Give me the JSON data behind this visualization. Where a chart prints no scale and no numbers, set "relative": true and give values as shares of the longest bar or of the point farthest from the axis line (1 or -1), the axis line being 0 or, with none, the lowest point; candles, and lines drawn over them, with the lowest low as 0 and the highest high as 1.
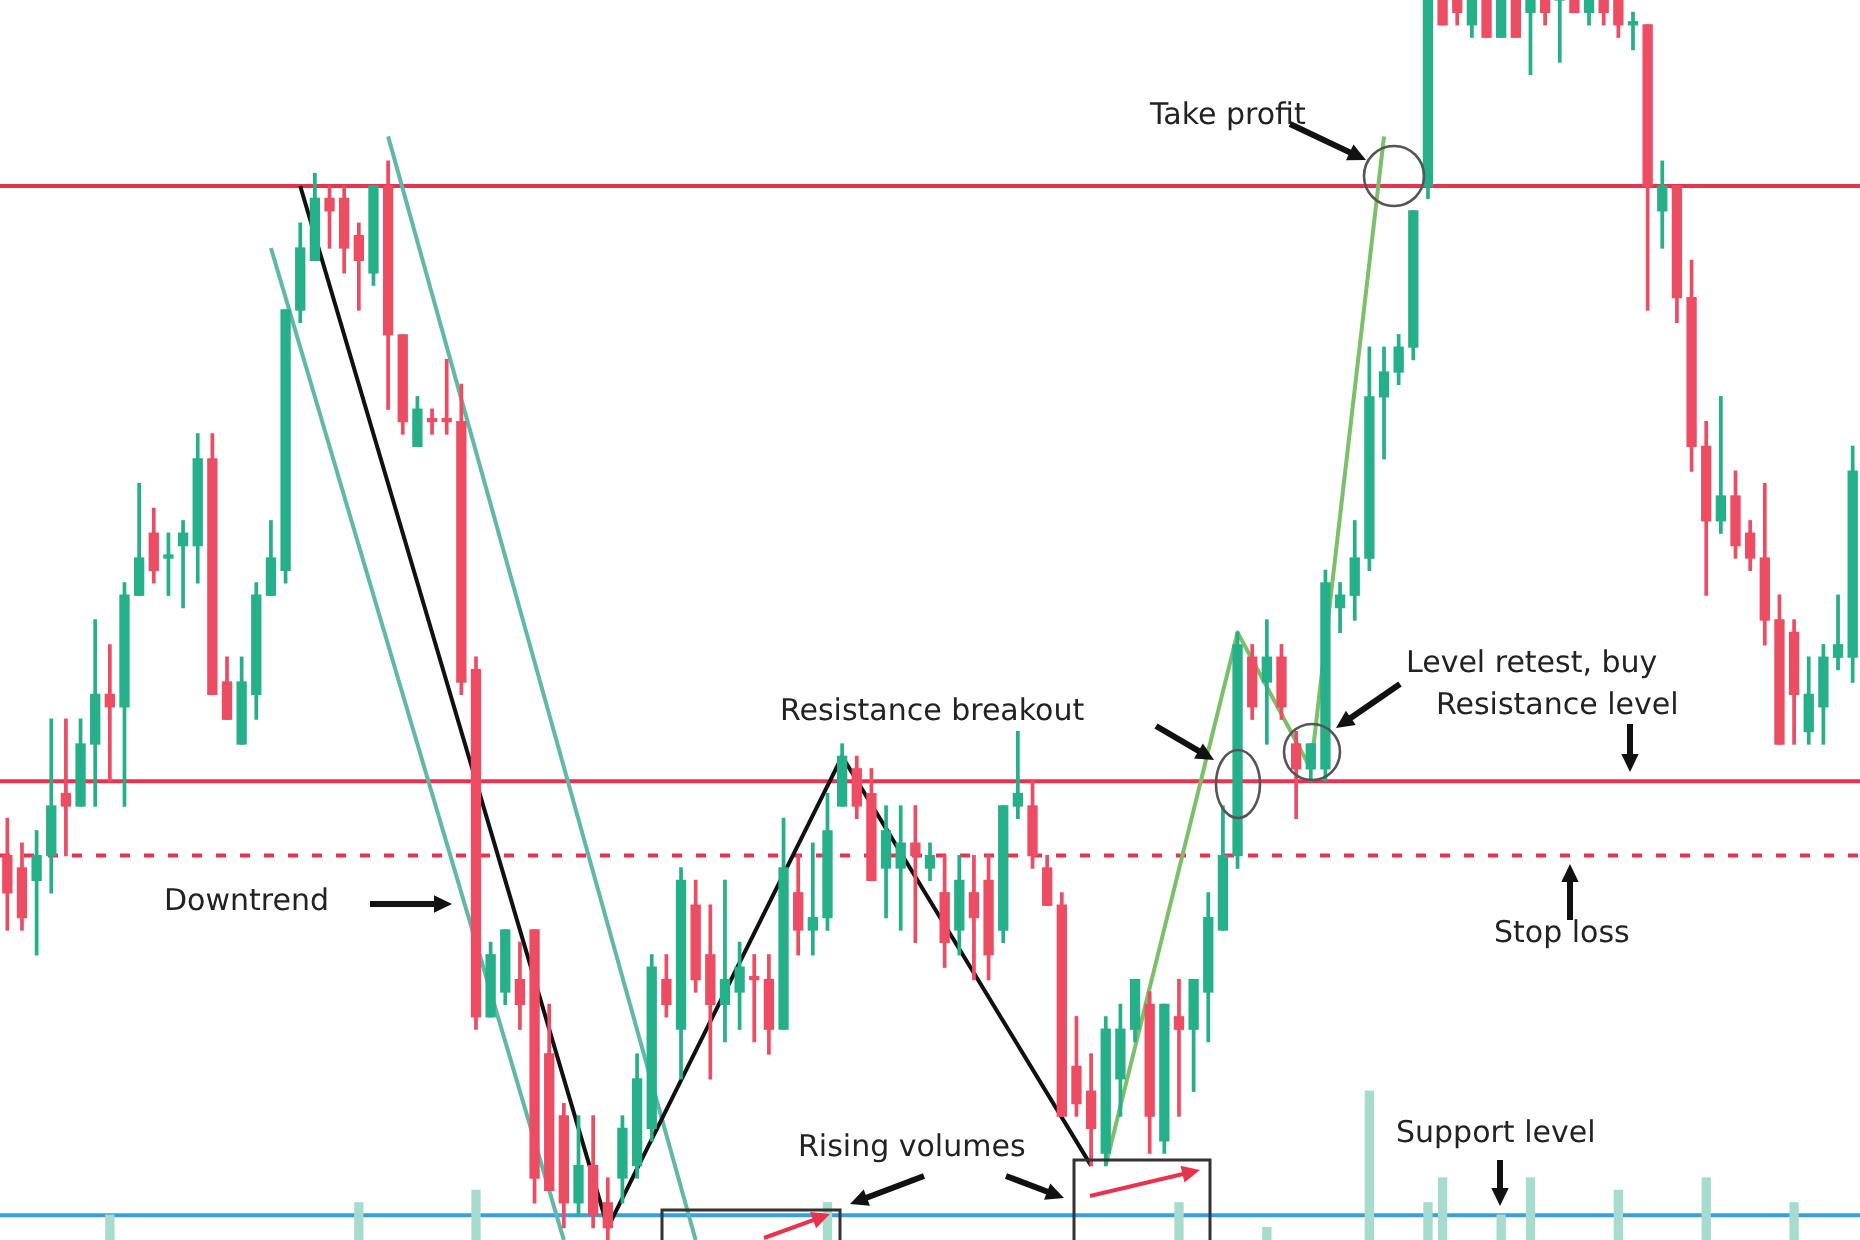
{
  "chart_data": {
    "type": "candlestick",
    "relative": true,
    "categories": [
      null,
      null,
      null,
      null,
      null,
      null,
      null,
      null,
      null,
      null,
      null,
      null,
      null,
      null,
      null,
      null,
      null,
      null,
      null,
      null,
      null,
      null,
      null,
      null,
      null,
      null,
      null,
      null,
      null,
      null,
      null,
      null,
      null,
      null,
      null,
      null,
      null,
      null,
      null,
      null,
      null,
      null,
      null,
      null,
      null,
      null,
      null,
      null,
      null,
      null,
      null,
      null,
      null,
      null,
      null,
      null,
      null,
      null,
      null,
      null,
      null,
      null,
      null,
      null,
      null,
      null,
      null,
      null,
      null,
      null,
      null,
      null,
      null,
      null,
      null,
      null,
      null,
      null,
      null,
      null,
      null,
      null,
      null,
      null,
      null,
      null,
      null,
      null,
      null,
      null,
      null,
      null,
      null,
      null,
      null,
      null,
      null,
      null,
      null,
      null,
      null,
      null,
      null,
      null,
      null,
      null,
      null,
      null,
      null,
      null,
      null,
      null,
      null,
      null,
      null,
      null,
      null,
      null,
      null,
      null,
      null,
      null,
      null,
      null,
      null,
      null,
      null
    ],
    "series": [
      {
        "colors": [
          "#ec4d63",
          "#ec4d63",
          "#26b089",
          "#26b089",
          "#ec4d63",
          "#26b089",
          "#26b089",
          "#ec4d63",
          "#26b089",
          "#26b089",
          "#ec4d63",
          "#26b089",
          "#26b089",
          "#26b089",
          "#ec4d63",
          "#ec4d63",
          "#26b089",
          "#26b089",
          "#26b089",
          "#26b089",
          "#26b089",
          "#26b089",
          "#ec4d63",
          "#ec4d63",
          "#ec4d63",
          "#26b089",
          "#ec4d63",
          "#ec4d63",
          "#26b089",
          "#ec4d63",
          "#ec4d63",
          "#ec4d63",
          "#ec4d63",
          "#26b089",
          "#26b089",
          "#ec4d63",
          "#ec4d63",
          "#ec4d63",
          "#ec4d63",
          "#26b089",
          "#ec4d63",
          "#ec4d63",
          "#26b089",
          "#26b089",
          "#26b089",
          "#ec4d63",
          "#26b089",
          "#ec4d63",
          "#ec4d63",
          "#26b089",
          "#26b089",
          "#ec4d63",
          "#ec4d63",
          "#26b089",
          "#ec4d63",
          "#26b089",
          "#26b089",
          "#26b089",
          "#ec4d63",
          "#ec4d63",
          "#26b089",
          "#26b089",
          "#ec4d63",
          "#26b089",
          "#ec4d63",
          "#26b089",
          "#ec4d63",
          "#ec4d63",
          "#26b089",
          "#26b089",
          "#ec4d63",
          "#ec4d63",
          "#ec4d63",
          "#ec4d63",
          "#ec4d63",
          "#26b089",
          "#26b089",
          "#26b089",
          "#ec4d63",
          "#26b089",
          "#ec4d63",
          "#26b089",
          "#26b089",
          "#26b089",
          "#26b089",
          "#ec4d63",
          "#26b089",
          "#ec4d63",
          "#ec4d63",
          "#26b089",
          "#26b089",
          "#26b089",
          "#26b089",
          "#26b089",
          "#26b089",
          "#26b089",
          "#26b089",
          "#26b089",
          "#ec4d63",
          "#ec4d63",
          "#26b089",
          "#ec4d63",
          "#26b089",
          "#ec4d63",
          "#26b089",
          "#ec4d63",
          "#26b089",
          "#ec4d63",
          "#26b089",
          "#ec4d63",
          "#ec4d63",
          "#26b089",
          "#ec4d63",
          "#26b089",
          "#ec4d63",
          "#ec4d63",
          "#ec4d63",
          "#26b089",
          "#ec4d63",
          "#ec4d63",
          "#ec4d63",
          "#ec4d63",
          "#ec4d63",
          "#26b089",
          "#26b089",
          "#26b089",
          "#26b089"
        ],
        "ohlc": [
          [
            0.31,
            0.34,
            0.25,
            0.28
          ],
          [
            0.3,
            0.32,
            0.25,
            0.26
          ],
          [
            0.29,
            0.33,
            0.23,
            0.31
          ],
          [
            0.31,
            0.42,
            0.28,
            0.35
          ],
          [
            0.36,
            0.42,
            0.31,
            0.35
          ],
          [
            0.35,
            0.42,
            0.35,
            0.4
          ],
          [
            0.4,
            0.5,
            0.35,
            0.44
          ],
          [
            0.44,
            0.48,
            0.37,
            0.43
          ],
          [
            0.43,
            0.53,
            0.35,
            0.52
          ],
          [
            0.52,
            0.61,
            0.52,
            0.55
          ],
          [
            0.57,
            0.59,
            0.53,
            0.54
          ],
          [
            0.55,
            0.57,
            0.52,
            0.55
          ],
          [
            0.56,
            0.58,
            0.51,
            0.57
          ],
          [
            0.56,
            0.65,
            0.53,
            0.63
          ],
          [
            0.63,
            0.65,
            0.44,
            0.44
          ],
          [
            0.45,
            0.47,
            0.42,
            0.42
          ],
          [
            0.4,
            0.47,
            0.4,
            0.45
          ],
          [
            0.44,
            0.53,
            0.42,
            0.52
          ],
          [
            0.52,
            0.58,
            0.52,
            0.55
          ],
          [
            0.54,
            0.75,
            0.53,
            0.75
          ],
          [
            0.75,
            0.82,
            0.74,
            0.8
          ],
          [
            0.79,
            0.86,
            0.79,
            0.84
          ],
          [
            0.84,
            0.85,
            0.8,
            0.83
          ],
          [
            0.84,
            0.85,
            0.78,
            0.8
          ],
          [
            0.81,
            0.82,
            0.75,
            0.79
          ],
          [
            0.78,
            0.85,
            0.77,
            0.85
          ],
          [
            0.85,
            0.87,
            0.67,
            0.73
          ],
          [
            0.73,
            0.73,
            0.65,
            0.66
          ],
          [
            0.64,
            0.68,
            0.64,
            0.67
          ],
          [
            0.66,
            0.67,
            0.65,
            0.66
          ],
          [
            0.66,
            0.71,
            0.65,
            0.66
          ],
          [
            0.66,
            0.69,
            0.44,
            0.45
          ],
          [
            0.46,
            0.47,
            0.17,
            0.18
          ],
          [
            0.18,
            0.24,
            0.18,
            0.23
          ],
          [
            0.2,
            0.25,
            0.19,
            0.25
          ],
          [
            0.21,
            0.24,
            0.17,
            0.19
          ],
          [
            0.25,
            0.25,
            0.03,
            0.05
          ],
          [
            0.15,
            0.19,
            0.04,
            0.04
          ],
          [
            0.1,
            0.11,
            0.01,
            0.03
          ],
          [
            0.03,
            0.1,
            0.02,
            0.06
          ],
          [
            0.06,
            0.1,
            0.01,
            0.02
          ],
          [
            0.03,
            0.05,
            0.0,
            0.01
          ],
          [
            0.05,
            0.1,
            0.03,
            0.09
          ],
          [
            0.06,
            0.15,
            0.05,
            0.13
          ],
          [
            0.09,
            0.23,
            0.08,
            0.22
          ],
          [
            0.21,
            0.23,
            0.18,
            0.19
          ],
          [
            0.17,
            0.3,
            0.13,
            0.29
          ],
          [
            0.27,
            0.29,
            0.2,
            0.21
          ],
          [
            0.23,
            0.27,
            0.13,
            0.19
          ],
          [
            0.19,
            0.29,
            0.16,
            0.21
          ],
          [
            0.2,
            0.24,
            0.17,
            0.22
          ],
          [
            0.21,
            0.23,
            0.16,
            0.21
          ],
          [
            0.21,
            0.23,
            0.15,
            0.17
          ],
          [
            0.17,
            0.34,
            0.17,
            0.3
          ],
          [
            0.28,
            0.31,
            0.23,
            0.25
          ],
          [
            0.25,
            0.32,
            0.23,
            0.26
          ],
          [
            0.26,
            0.36,
            0.25,
            0.33
          ],
          [
            0.35,
            0.4,
            0.35,
            0.39
          ],
          [
            0.38,
            0.39,
            0.34,
            0.35
          ],
          [
            0.36,
            0.38,
            0.29,
            0.29
          ],
          [
            0.3,
            0.35,
            0.26,
            0.33
          ],
          [
            0.3,
            0.35,
            0.25,
            0.32
          ],
          [
            0.32,
            0.35,
            0.24,
            0.31
          ],
          [
            0.3,
            0.32,
            0.29,
            0.31
          ],
          [
            0.28,
            0.31,
            0.22,
            0.24
          ],
          [
            0.25,
            0.31,
            0.23,
            0.29
          ],
          [
            0.28,
            0.31,
            0.21,
            0.26
          ],
          [
            0.29,
            0.31,
            0.21,
            0.23
          ],
          [
            0.25,
            0.35,
            0.24,
            0.35
          ],
          [
            0.35,
            0.41,
            0.34,
            0.36
          ],
          [
            0.35,
            0.37,
            0.3,
            0.31
          ],
          [
            0.3,
            0.31,
            0.27,
            0.27
          ],
          [
            0.27,
            0.28,
            0.1,
            0.1
          ],
          [
            0.14,
            0.18,
            0.1,
            0.11
          ],
          [
            0.12,
            0.15,
            0.06,
            0.09
          ],
          [
            0.07,
            0.18,
            0.06,
            0.17
          ],
          [
            0.13,
            0.19,
            0.1,
            0.17
          ],
          [
            0.17,
            0.21,
            0.16,
            0.21
          ],
          [
            0.19,
            0.2,
            0.07,
            0.1
          ],
          [
            0.08,
            0.19,
            0.07,
            0.19
          ],
          [
            0.18,
            0.21,
            0.1,
            0.17
          ],
          [
            0.17,
            0.21,
            0.12,
            0.21
          ],
          [
            0.2,
            0.28,
            0.16,
            0.26
          ],
          [
            0.25,
            0.35,
            0.25,
            0.31
          ],
          [
            0.31,
            0.49,
            0.3,
            0.48
          ],
          [
            0.47,
            0.48,
            0.42,
            0.43
          ],
          [
            0.45,
            0.5,
            0.4,
            0.47
          ],
          [
            0.47,
            0.48,
            0.42,
            0.43
          ],
          [
            0.4,
            0.41,
            0.34,
            0.38
          ],
          [
            0.38,
            0.4,
            0.37,
            0.4
          ],
          [
            0.38,
            0.54,
            0.37,
            0.53
          ],
          [
            0.51,
            0.53,
            0.49,
            0.52
          ],
          [
            0.52,
            0.58,
            0.5,
            0.55
          ],
          [
            0.55,
            0.72,
            0.54,
            0.68
          ],
          [
            0.68,
            0.72,
            0.63,
            0.7
          ],
          [
            0.7,
            0.73,
            0.69,
            0.72
          ],
          [
            0.72,
            0.83,
            0.71,
            0.83
          ],
          [
            0.85,
            1.0,
            0.84,
            1.0
          ],
          [
            1.0,
            1.0,
            0.98,
            0.98
          ],
          [
            1.0,
            1.0,
            0.98,
            0.99
          ],
          [
            0.98,
            1.0,
            0.97,
            1.0
          ],
          [
            1.0,
            1.0,
            0.97,
            0.97
          ],
          [
            0.97,
            1.0,
            0.97,
            1.0
          ],
          [
            1.0,
            1.0,
            0.97,
            0.97
          ],
          [
            0.99,
            1.0,
            0.94,
            1.0
          ],
          [
            1.0,
            1.0,
            0.98,
            0.99
          ],
          [
            1.0,
            1.0,
            0.95,
            1.0
          ],
          [
            1.0,
            1.0,
            0.99,
            0.99
          ],
          [
            0.99,
            1.0,
            0.98,
            1.0
          ],
          [
            1.0,
            1.0,
            0.98,
            0.99
          ],
          [
            1.0,
            1.0,
            0.97,
            0.98
          ],
          [
            0.98,
            0.99,
            0.96,
            0.98
          ],
          [
            0.98,
            0.98,
            0.75,
            0.85
          ],
          [
            0.83,
            0.87,
            0.8,
            0.85
          ],
          [
            0.85,
            0.85,
            0.74,
            0.76
          ],
          [
            0.76,
            0.79,
            0.62,
            0.64
          ],
          [
            0.64,
            0.66,
            0.52,
            0.58
          ],
          [
            0.58,
            0.68,
            0.57,
            0.6
          ],
          [
            0.6,
            0.62,
            0.55,
            0.56
          ],
          [
            0.57,
            0.58,
            0.54,
            0.55
          ],
          [
            0.55,
            0.61,
            0.48,
            0.5
          ],
          [
            0.5,
            0.52,
            0.4,
            0.4
          ],
          [
            0.49,
            0.5,
            0.4,
            0.44
          ],
          [
            0.41,
            0.47,
            0.4,
            0.44
          ],
          [
            0.43,
            0.48,
            0.4,
            0.47
          ],
          [
            0.47,
            0.52,
            0.46,
            0.48
          ],
          [
            0.47,
            0.64,
            0.45,
            0.62
          ]
        ]
      },
      {
        "type": "bar",
        "color": "#a6dccd",
        "values": [
          null,
          null,
          null,
          null,
          null,
          null,
          null,
          0.02,
          null,
          null,
          null,
          null,
          null,
          null,
          null,
          null,
          null,
          null,
          null,
          null,
          null,
          null,
          null,
          null,
          0.03,
          null,
          null,
          null,
          null,
          null,
          null,
          null,
          0.04,
          null,
          null,
          null,
          null,
          null,
          null,
          null,
          null,
          null,
          null,
          null,
          null,
          null,
          null,
          null,
          null,
          null,
          null,
          null,
          null,
          null,
          null,
          null,
          0.03,
          null,
          null,
          null,
          null,
          null,
          null,
          null,
          null,
          null,
          null,
          null,
          null,
          null,
          null,
          null,
          null,
          null,
          null,
          null,
          null,
          null,
          null,
          null,
          0.03,
          null,
          null,
          null,
          null,
          null,
          0.01,
          null,
          null,
          null,
          null,
          null,
          null,
          0.12,
          null,
          null,
          null,
          0.03,
          0.05,
          null,
          null,
          null,
          0.02,
          null,
          0.05,
          null,
          null,
          null,
          null,
          null,
          0.04,
          null,
          null,
          null,
          null,
          null,
          0.05,
          null,
          null,
          null,
          null,
          null,
          0.03,
          null,
          null,
          null,
          null
        ]
      },
      {
        "type": "line",
        "color": "#111111",
        "values": [
          null,
          null,
          null,
          null,
          null,
          null,
          null,
          null,
          null,
          null,
          null,
          null,
          null,
          null,
          null,
          null,
          null,
          null,
          null,
          null,
          0.85,
          null,
          null,
          null,
          null,
          null,
          null,
          null,
          null,
          null,
          null,
          null,
          null,
          null,
          null,
          null,
          null,
          null,
          null,
          null,
          null,
          0.01,
          null,
          null,
          null,
          null,
          null,
          null,
          null,
          null,
          null,
          null,
          null,
          null,
          null,
          null,
          null,
          0.39,
          null,
          null,
          null,
          null,
          null,
          null,
          null,
          null,
          null,
          null,
          null,
          null,
          null,
          null,
          null,
          null,
          0.06,
          null,
          null,
          null,
          null,
          null,
          null,
          null,
          null,
          null,
          null,
          null,
          null,
          null,
          null,
          null,
          null,
          null,
          null,
          null,
          null,
          null,
          null,
          null,
          null,
          null,
          null,
          null,
          null,
          null,
          null,
          null,
          null,
          null,
          null,
          null,
          null,
          null,
          null,
          null,
          null,
          null,
          null,
          null,
          null,
          null,
          null,
          null,
          null,
          null,
          null,
          null,
          null
        ]
      },
      {
        "type": "line",
        "color": "#5fb8a8",
        "values": [
          null,
          null,
          null,
          null,
          null,
          null,
          null,
          null,
          null,
          null,
          null,
          null,
          null,
          null,
          null,
          null,
          null,
          null,
          0.8,
          null,
          null,
          null,
          null,
          null,
          null,
          null,
          null,
          null,
          null,
          null,
          null,
          null,
          null,
          null,
          null,
          null,
          null,
          null,
          0.0,
          null,
          null,
          null,
          null,
          null,
          null,
          null,
          null,
          null,
          null,
          null,
          null,
          null,
          null,
          null,
          null,
          null,
          null,
          null,
          null,
          null,
          null,
          null,
          null,
          null,
          null,
          null,
          null,
          null,
          null,
          null,
          null,
          null,
          null,
          null,
          null,
          null,
          null,
          null,
          null,
          null,
          null,
          null,
          null,
          null,
          null,
          null,
          null,
          null,
          null,
          null,
          null,
          null,
          null,
          null,
          null,
          null,
          null,
          null,
          null,
          null,
          null,
          null,
          null,
          null,
          null,
          null,
          null,
          null,
          null,
          null,
          null,
          null,
          null,
          null,
          null,
          null,
          null,
          null,
          null,
          null,
          null,
          null,
          null,
          null,
          null,
          null,
          null
        ]
      },
      {
        "type": "line",
        "color": "#5fb8a8",
        "values": [
          null,
          null,
          null,
          null,
          null,
          null,
          null,
          null,
          null,
          null,
          null,
          null,
          null,
          null,
          null,
          null,
          null,
          null,
          null,
          null,
          null,
          null,
          null,
          null,
          null,
          null,
          0.89,
          null,
          null,
          null,
          null,
          null,
          null,
          null,
          null,
          null,
          null,
          null,
          null,
          null,
          null,
          null,
          null,
          null,
          null,
          null,
          null,
          0.0,
          null,
          null,
          null,
          null,
          null,
          null,
          null,
          null,
          null,
          null,
          null,
          null,
          null,
          null,
          null,
          null,
          null,
          null,
          null,
          null,
          null,
          null,
          null,
          null,
          null,
          null,
          null,
          null,
          null,
          null,
          null,
          null,
          null,
          null,
          null,
          null,
          null,
          null,
          null,
          null,
          null,
          null,
          null,
          null,
          null,
          null,
          null,
          null,
          null,
          null,
          null,
          null,
          null,
          null,
          null,
          null,
          null,
          null,
          null,
          null,
          null,
          null,
          null,
          null,
          null,
          null,
          null,
          null,
          null,
          null,
          null,
          null,
          null,
          null,
          null,
          null,
          null,
          null,
          null
        ]
      },
      {
        "type": "line",
        "color": "#7cbf6a",
        "values": [
          null,
          null,
          null,
          null,
          null,
          null,
          null,
          null,
          null,
          null,
          null,
          null,
          null,
          null,
          null,
          null,
          null,
          null,
          null,
          null,
          null,
          null,
          null,
          null,
          null,
          null,
          null,
          null,
          null,
          null,
          null,
          null,
          null,
          null,
          null,
          null,
          null,
          null,
          null,
          null,
          null,
          null,
          null,
          null,
          null,
          null,
          null,
          null,
          null,
          null,
          null,
          null,
          null,
          null,
          null,
          null,
          null,
          null,
          null,
          null,
          null,
          null,
          null,
          null,
          null,
          null,
          null,
          null,
          null,
          null,
          null,
          null,
          null,
          null,
          null,
          0.06,
          null,
          null,
          null,
          null,
          null,
          null,
          null,
          null,
          0.49,
          null,
          null,
          null,
          null,
          0.38,
          null,
          null,
          null,
          null,
          0.89,
          null,
          null,
          null,
          null,
          null,
          null,
          null,
          null,
          null,
          null,
          null,
          null,
          null,
          null,
          null,
          null,
          null,
          null,
          null,
          null,
          null,
          null,
          null,
          null,
          null,
          null,
          null,
          null,
          null,
          null,
          null,
          null
        ]
      }
    ],
    "ref_lines": [
      {
        "axis": "y",
        "value": 0.85,
        "label": null,
        "color": "#e8334f",
        "line_style": "solid"
      },
      {
        "axis": "y",
        "value": 0.37,
        "label": "Resistance level",
        "color": "#e8334f",
        "line_style": "solid"
      },
      {
        "axis": "y",
        "value": 0.31,
        "label": "Stop loss",
        "color": "#e8334f",
        "line_style": "dashed"
      },
      {
        "axis": "y",
        "value": 0.02,
        "label": "Support level",
        "color": "#3aa0d8",
        "line_style": "solid"
      }
    ],
    "annotations": [
      "Take profit",
      "Resistance breakout",
      "Level retest, buy",
      "Downtrend",
      "Rising volumes"
    ]
  }
}
